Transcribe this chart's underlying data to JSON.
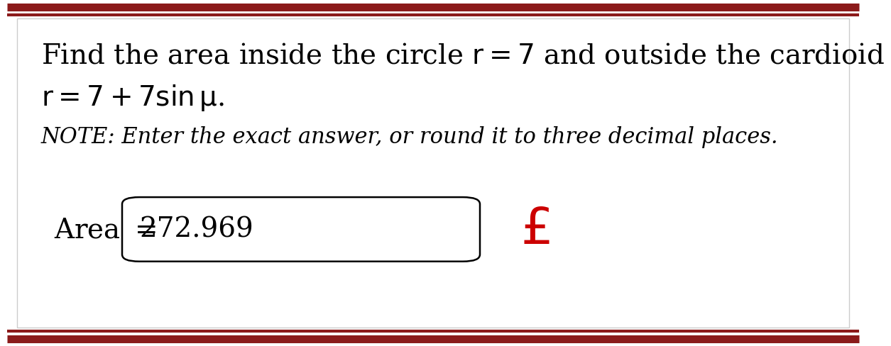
{
  "bg_color": "#ffffff",
  "border_color": "#8b1a1a",
  "border_linewidth": 8,
  "inner_border_color": "#cccccc",
  "inner_border_linewidth": 1.0,
  "text_color": "#000000",
  "x_color": "#cc0000",
  "line1": "Find the area inside the circle $r = 7$ and outside the cardioid",
  "line2": "$r = 7 + 7\\sin\\theta$.",
  "note_line": "NOTE: Enter the exact answer, or round it to three decimal places.",
  "label": "Area $=$",
  "answer": "272.969",
  "main_fontsize": 28,
  "note_fontsize": 22,
  "answer_fontsize": 28,
  "label_fontsize": 28,
  "xmark_fontsize": 52
}
